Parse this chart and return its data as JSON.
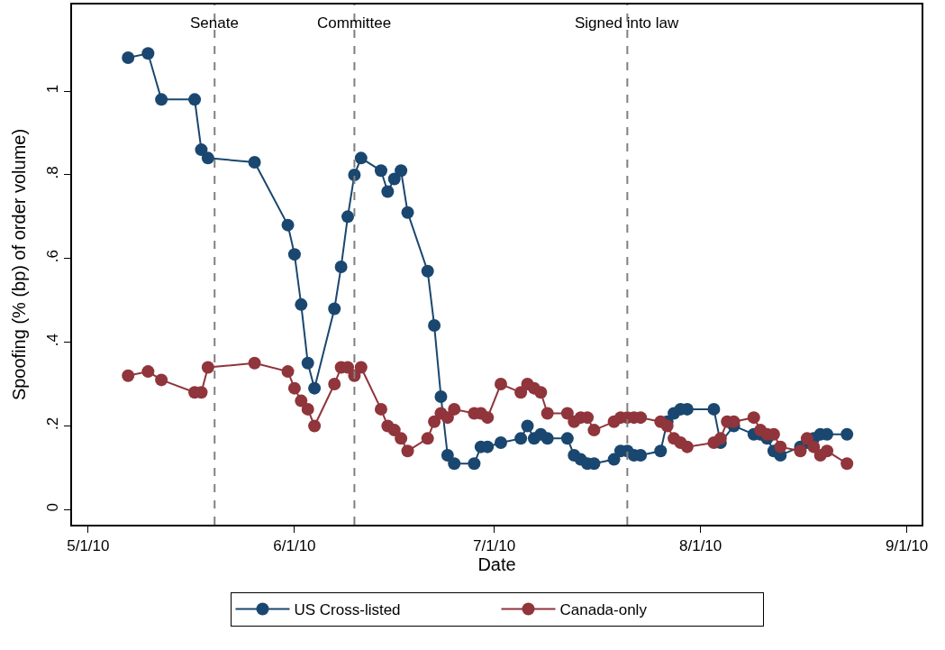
{
  "chart_data": {
    "type": "line",
    "xlabel": "Date",
    "ylabel": "Spoofing (% (bp) of order volume)",
    "x": [
      "2010-05-07",
      "2010-05-10",
      "2010-05-12",
      "2010-05-17",
      "2010-05-18",
      "2010-05-19",
      "2010-05-26",
      "2010-05-31",
      "2010-06-01",
      "2010-06-02",
      "2010-06-03",
      "2010-06-04",
      "2010-06-07",
      "2010-06-08",
      "2010-06-09",
      "2010-06-10",
      "2010-06-11",
      "2010-06-14",
      "2010-06-15",
      "2010-06-16",
      "2010-06-17",
      "2010-06-18",
      "2010-06-21",
      "2010-06-22",
      "2010-06-23",
      "2010-06-24",
      "2010-06-25",
      "2010-06-28",
      "2010-06-29",
      "2010-06-30",
      "2010-07-02",
      "2010-07-05",
      "2010-07-06",
      "2010-07-07",
      "2010-07-08",
      "2010-07-09",
      "2010-07-12",
      "2010-07-13",
      "2010-07-14",
      "2010-07-15",
      "2010-07-16",
      "2010-07-19",
      "2010-07-20",
      "2010-07-21",
      "2010-07-22",
      "2010-07-23",
      "2010-07-26",
      "2010-07-27",
      "2010-07-28",
      "2010-07-29",
      "2010-07-30",
      "2010-08-03",
      "2010-08-04",
      "2010-08-05",
      "2010-08-06",
      "2010-08-09",
      "2010-08-10",
      "2010-08-11",
      "2010-08-12",
      "2010-08-13",
      "2010-08-16",
      "2010-08-17",
      "2010-08-18",
      "2010-08-19",
      "2010-08-20",
      "2010-08-23"
    ],
    "series": [
      {
        "name": "US Cross-listed",
        "color": "#1a476f",
        "values": [
          1.08,
          1.09,
          0.98,
          0.98,
          0.86,
          0.84,
          0.83,
          0.68,
          0.61,
          0.49,
          0.35,
          0.29,
          0.48,
          0.58,
          0.7,
          0.8,
          0.84,
          0.81,
          0.76,
          0.79,
          0.81,
          0.71,
          0.57,
          0.44,
          0.27,
          0.13,
          0.11,
          0.11,
          0.15,
          0.15,
          0.16,
          0.17,
          0.2,
          0.17,
          0.18,
          0.17,
          0.17,
          0.13,
          0.12,
          0.11,
          0.11,
          0.12,
          0.14,
          0.14,
          0.13,
          0.13,
          0.14,
          0.21,
          0.23,
          0.24,
          0.24,
          0.24,
          0.16,
          null,
          0.2,
          0.18,
          0.18,
          0.17,
          0.14,
          0.13,
          0.15,
          0.16,
          0.17,
          0.18,
          0.18,
          0.18
        ]
      },
      {
        "name": "Canada-only",
        "color": "#90353b",
        "values": [
          0.32,
          0.33,
          0.31,
          0.28,
          0.28,
          0.34,
          0.35,
          0.33,
          0.29,
          0.26,
          0.24,
          0.2,
          0.3,
          0.34,
          0.34,
          0.32,
          0.34,
          0.24,
          0.2,
          0.19,
          0.17,
          0.14,
          0.17,
          0.21,
          0.23,
          0.22,
          0.24,
          0.23,
          0.23,
          0.22,
          0.3,
          0.28,
          0.3,
          0.29,
          0.28,
          0.23,
          0.23,
          0.21,
          0.22,
          0.22,
          0.19,
          0.21,
          0.22,
          0.22,
          0.22,
          0.22,
          0.21,
          0.2,
          0.17,
          0.16,
          0.15,
          0.16,
          0.17,
          0.21,
          0.21,
          0.22,
          0.19,
          0.18,
          0.18,
          0.15,
          0.14,
          0.17,
          0.15,
          0.13,
          0.14,
          0.11
        ]
      }
    ],
    "xlim": [
      "2010-04-28T14:00",
      "2010-09-03T05:00"
    ],
    "xticks": [
      {
        "value": "2010-05-01",
        "label": "5/1/10"
      },
      {
        "value": "2010-06-01",
        "label": "6/1/10"
      },
      {
        "value": "2010-07-01",
        "label": "7/1/10"
      },
      {
        "value": "2010-08-01",
        "label": "8/1/10"
      },
      {
        "value": "2010-09-01",
        "label": "9/1/10"
      }
    ],
    "ylim": [
      -0.036,
      1.207
    ],
    "yticks": [
      0,
      {
        "value": 0.2,
        "label": ".2"
      },
      {
        "value": 0.4,
        "label": ".4"
      },
      {
        "value": 0.6,
        "label": ".6"
      },
      {
        "value": 0.8,
        "label": ".8"
      },
      1
    ],
    "ref_lines": [
      {
        "axis": "x",
        "value": "2010-05-20",
        "label": "Senate",
        "color": "#808080",
        "line_style": "dashed"
      },
      {
        "axis": "x",
        "value": "2010-06-10",
        "label": "Committee",
        "color": "#808080",
        "line_style": "dashed"
      },
      {
        "axis": "x",
        "value": "2010-07-21",
        "label": "Signed into law",
        "color": "#808080",
        "line_style": "dashed"
      }
    ],
    "marker": "circle",
    "line_style": "solid",
    "legend": "bottom"
  }
}
